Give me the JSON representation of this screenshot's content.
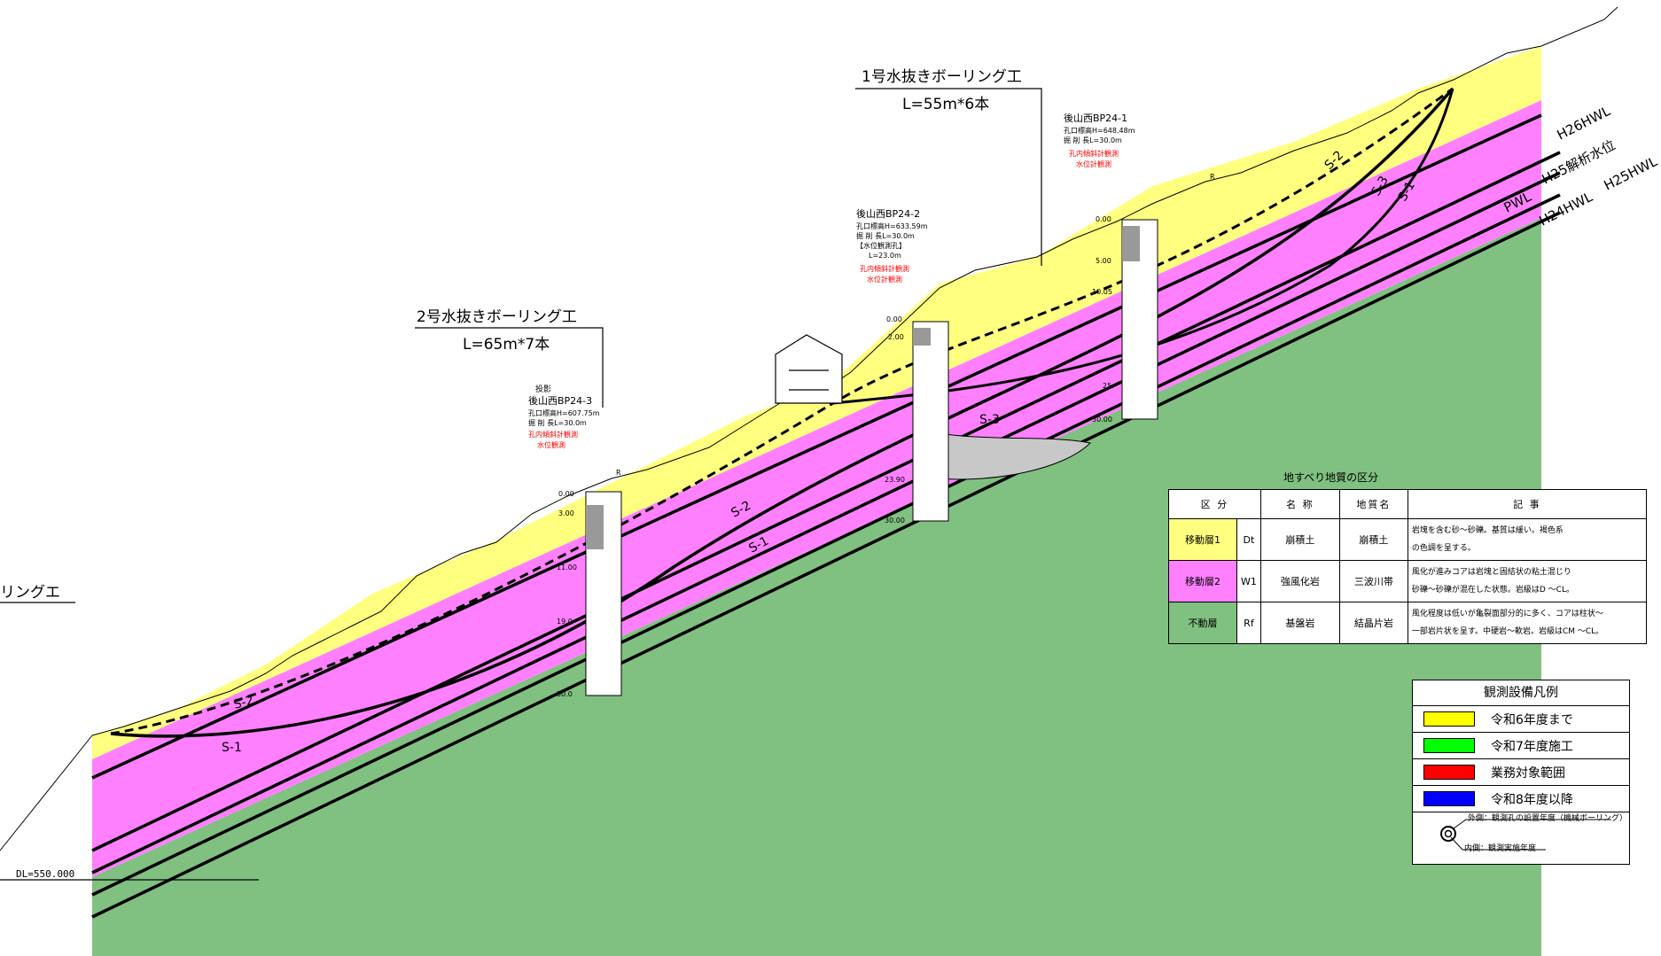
{
  "labels": {
    "drain2_title": "2号水抜きボーリング工",
    "drain2_len": "L=65m*7本",
    "drain1_title": "1号水抜きボーリング工",
    "drain1_len": "L=55m*6本",
    "drain_left": "リングエ",
    "datum": "DL=550.000",
    "s1": "S-1",
    "s2": "S-2",
    "s3": "S-3",
    "h26": "H26HWL",
    "h25a": "H25解析水位",
    "h25": "H25HWL",
    "pwl": "PWL",
    "h24": "H24HWL",
    "r": "R"
  },
  "boreholes": [
    {
      "name": "後山西BP24-3",
      "proj": "投影",
      "elev": "孔口標高H=607.75m",
      "len": "掘 削 長L=30.0m",
      "obs1": "孔内傾斜計観測",
      "obs2": "水位観測",
      "depths": [
        "0.00",
        "3.00",
        "11.00",
        "19.0",
        "30.0"
      ]
    },
    {
      "name": "後山西BP24-2",
      "elev": "孔口標高H=633.59m",
      "len": "掘 削 長L=30.0m",
      "extra1": "【水位観測孔】",
      "extra2": "L=23.0m",
      "obs1": "孔内傾斜計観測",
      "obs2": "水位計観測",
      "depths": [
        "0.00",
        "2.00",
        "23.90",
        "30.00"
      ]
    },
    {
      "name": "後山西BP24-1",
      "elev": "孔口標高H=648.48m",
      "len": "掘 削 長L=30.0m",
      "obs1": "孔内傾斜計観測",
      "obs2": "水位計観測",
      "depths": [
        "0.00",
        "5.00",
        "10.05",
        "25.",
        "30.00"
      ]
    }
  ],
  "geo_table": {
    "title": "地すべり地質の区分",
    "headers": [
      "区 分",
      "名 称",
      "地質名",
      "記 事"
    ],
    "rows": [
      {
        "zone": "移動層1",
        "code": "Dt",
        "name": "崩積土",
        "geology": "崩積土",
        "note1": "岩塊を含む砂～砂礫。基質は緩い。褐色系",
        "note2": "の色調を呈する。",
        "color": "#ffff80"
      },
      {
        "zone": "移動層2",
        "code": "W1",
        "name": "強風化岩",
        "geology": "三波川帯",
        "note1": "風化が進みコアは岩塊と固結状の粘土混じり",
        "note2": "砂礫～砂礫が混在した状態。岩級はD ～CL。",
        "color": "#ff80ff"
      },
      {
        "zone": "不動層",
        "code": "Rf",
        "name": "基盤岩",
        "geology": "結晶片岩",
        "note1": "風化程度は低いが亀裂面部分的に多く、コアは柱状～",
        "note2": "一部岩片状を呈す。中硬岩～軟岩。岩級はCM ～CL。",
        "color": "#80c080"
      }
    ]
  },
  "legend": {
    "title": "観測設備凡例",
    "items": [
      {
        "label": "令和6年度まで",
        "color": "#ffff00"
      },
      {
        "label": "令和7年度施工",
        "color": "#00ff00"
      },
      {
        "label": "業務対象範囲",
        "color": "#ff0000"
      },
      {
        "label": "令和8年度以降",
        "color": "#0000ff"
      }
    ],
    "outer_note": "外側：観測孔の設置年度（機械ボーリング）",
    "inner_note": "内側：観測実施年度"
  },
  "colors": {
    "colluvium": "#ffff80",
    "weathered": "#ff80ff",
    "bedrock": "#80c080",
    "slide3": "#c8c8c8"
  }
}
